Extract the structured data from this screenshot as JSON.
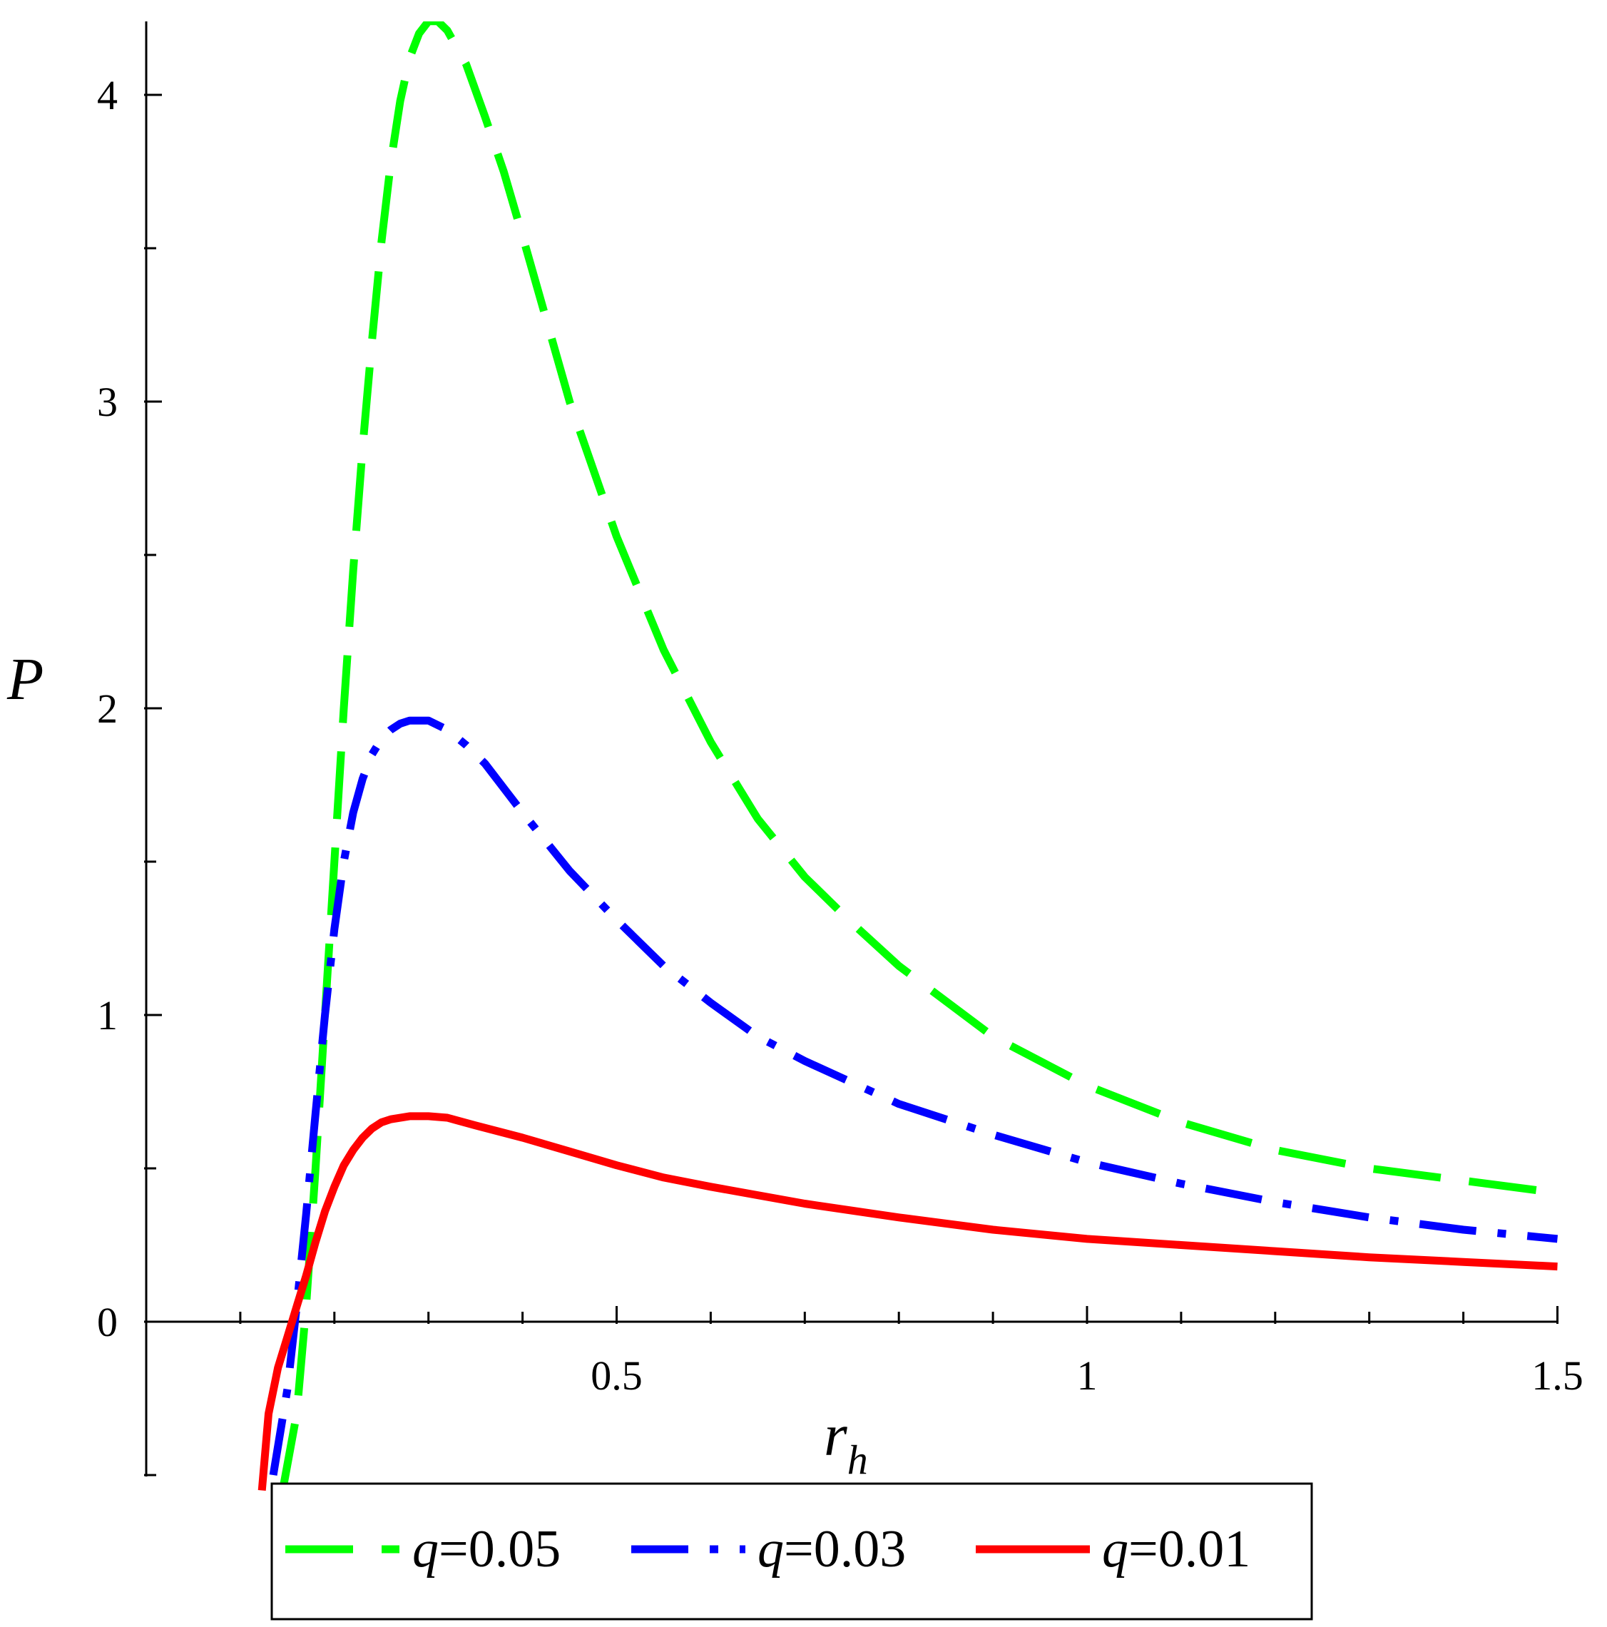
{
  "chart_data": {
    "type": "line",
    "xlabel": "r",
    "xlabel_subscript": "h",
    "ylabel": "P",
    "xlim": [
      0,
      1.5
    ],
    "ylim": [
      -0.5,
      4.25
    ],
    "x_ticks": [
      0.5,
      1,
      1.5
    ],
    "x_tick_labels": [
      "0.5",
      "1",
      "1.5"
    ],
    "y_ticks": [
      0,
      1,
      2,
      3,
      4
    ],
    "y_tick_labels": [
      "0",
      "1",
      "2",
      "3",
      "4"
    ],
    "grid": false,
    "legend_position": "bottom",
    "series": [
      {
        "name": "q=0.05",
        "legend_var": "q",
        "legend_value": "=0.05",
        "color": "#00ff00",
        "style": "long-dash",
        "points": [
          [
            0.145,
            -0.55
          ],
          [
            0.16,
            -0.3
          ],
          [
            0.17,
            0.05
          ],
          [
            0.18,
            0.5
          ],
          [
            0.19,
            1.0
          ],
          [
            0.2,
            1.5
          ],
          [
            0.21,
            2.0
          ],
          [
            0.22,
            2.45
          ],
          [
            0.23,
            2.85
          ],
          [
            0.24,
            3.2
          ],
          [
            0.25,
            3.52
          ],
          [
            0.26,
            3.78
          ],
          [
            0.27,
            3.98
          ],
          [
            0.28,
            4.12
          ],
          [
            0.29,
            4.2
          ],
          [
            0.3,
            4.24
          ],
          [
            0.31,
            4.24
          ],
          [
            0.32,
            4.21
          ],
          [
            0.34,
            4.1
          ],
          [
            0.36,
            3.93
          ],
          [
            0.38,
            3.75
          ],
          [
            0.4,
            3.54
          ],
          [
            0.45,
            3.0
          ],
          [
            0.5,
            2.56
          ],
          [
            0.55,
            2.19
          ],
          [
            0.6,
            1.89
          ],
          [
            0.65,
            1.64
          ],
          [
            0.7,
            1.45
          ],
          [
            0.75,
            1.3
          ],
          [
            0.8,
            1.16
          ],
          [
            0.9,
            0.93
          ],
          [
            1.0,
            0.77
          ],
          [
            1.1,
            0.65
          ],
          [
            1.2,
            0.56
          ],
          [
            1.3,
            0.5
          ],
          [
            1.4,
            0.46
          ],
          [
            1.5,
            0.42
          ]
        ]
      },
      {
        "name": "q=0.03",
        "legend_var": "q",
        "legend_value": "=0.03",
        "color": "#0000ff",
        "style": "dash-dot",
        "points": [
          [
            0.135,
            -0.5
          ],
          [
            0.15,
            -0.22
          ],
          [
            0.16,
            0.05
          ],
          [
            0.17,
            0.35
          ],
          [
            0.18,
            0.68
          ],
          [
            0.19,
            1.0
          ],
          [
            0.2,
            1.28
          ],
          [
            0.21,
            1.5
          ],
          [
            0.22,
            1.66
          ],
          [
            0.23,
            1.77
          ],
          [
            0.24,
            1.85
          ],
          [
            0.25,
            1.9
          ],
          [
            0.26,
            1.93
          ],
          [
            0.27,
            1.95
          ],
          [
            0.28,
            1.96
          ],
          [
            0.3,
            1.96
          ],
          [
            0.32,
            1.93
          ],
          [
            0.34,
            1.88
          ],
          [
            0.36,
            1.82
          ],
          [
            0.38,
            1.74
          ],
          [
            0.4,
            1.66
          ],
          [
            0.45,
            1.47
          ],
          [
            0.5,
            1.31
          ],
          [
            0.55,
            1.16
          ],
          [
            0.6,
            1.04
          ],
          [
            0.65,
            0.93
          ],
          [
            0.7,
            0.85
          ],
          [
            0.75,
            0.78
          ],
          [
            0.8,
            0.71
          ],
          [
            0.9,
            0.61
          ],
          [
            1.0,
            0.52
          ],
          [
            1.1,
            0.45
          ],
          [
            1.2,
            0.39
          ],
          [
            1.3,
            0.34
          ],
          [
            1.4,
            0.3
          ],
          [
            1.5,
            0.27
          ]
        ]
      },
      {
        "name": "q=0.01",
        "legend_var": "q",
        "legend_value": "=0.01",
        "color": "#ff0000",
        "style": "solid",
        "points": [
          [
            0.123,
            -0.55
          ],
          [
            0.13,
            -0.3
          ],
          [
            0.14,
            -0.15
          ],
          [
            0.15,
            -0.05
          ],
          [
            0.16,
            0.05
          ],
          [
            0.17,
            0.15
          ],
          [
            0.18,
            0.26
          ],
          [
            0.19,
            0.36
          ],
          [
            0.2,
            0.44
          ],
          [
            0.21,
            0.51
          ],
          [
            0.22,
            0.56
          ],
          [
            0.23,
            0.6
          ],
          [
            0.24,
            0.63
          ],
          [
            0.25,
            0.65
          ],
          [
            0.26,
            0.66
          ],
          [
            0.28,
            0.67
          ],
          [
            0.3,
            0.67
          ],
          [
            0.32,
            0.665
          ],
          [
            0.35,
            0.64
          ],
          [
            0.4,
            0.6
          ],
          [
            0.45,
            0.555
          ],
          [
            0.5,
            0.51
          ],
          [
            0.55,
            0.47
          ],
          [
            0.6,
            0.44
          ],
          [
            0.7,
            0.385
          ],
          [
            0.8,
            0.34
          ],
          [
            0.9,
            0.3
          ],
          [
            1.0,
            0.27
          ],
          [
            1.1,
            0.25
          ],
          [
            1.2,
            0.23
          ],
          [
            1.3,
            0.21
          ],
          [
            1.4,
            0.195
          ],
          [
            1.5,
            0.18
          ]
        ]
      }
    ]
  }
}
